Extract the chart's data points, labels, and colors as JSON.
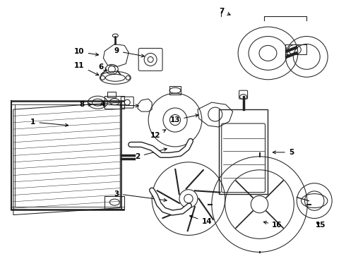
{
  "bg_color": "#ffffff",
  "fig_width": 4.9,
  "fig_height": 3.6,
  "dpi": 100,
  "lc": "#222222",
  "label_fontsize": 7.5,
  "label_positions": {
    "1": [
      0.095,
      0.595,
      0.135,
      0.575
    ],
    "2": [
      0.395,
      0.455,
      0.415,
      0.48
    ],
    "3": [
      0.335,
      0.36,
      0.355,
      0.375
    ],
    "4": [
      0.295,
      0.66,
      0.32,
      0.668
    ],
    "5": [
      0.84,
      0.49,
      0.795,
      0.49
    ],
    "6": [
      0.29,
      0.84,
      0.31,
      0.855
    ],
    "7": [
      0.64,
      0.93,
      0.685,
      0.905
    ],
    "8": [
      0.235,
      0.735,
      0.26,
      0.74
    ],
    "9": [
      0.33,
      0.875,
      0.345,
      0.862
    ],
    "10": [
      0.225,
      0.895,
      0.26,
      0.895
    ],
    "11": [
      0.225,
      0.855,
      0.26,
      0.855
    ],
    "12": [
      0.445,
      0.635,
      0.465,
      0.65
    ],
    "13": [
      0.495,
      0.565,
      0.48,
      0.578
    ],
    "14": [
      0.59,
      0.265,
      0.6,
      0.283
    ],
    "15": [
      0.92,
      0.265,
      0.91,
      0.28
    ],
    "16": [
      0.8,
      0.265,
      0.8,
      0.28
    ]
  }
}
